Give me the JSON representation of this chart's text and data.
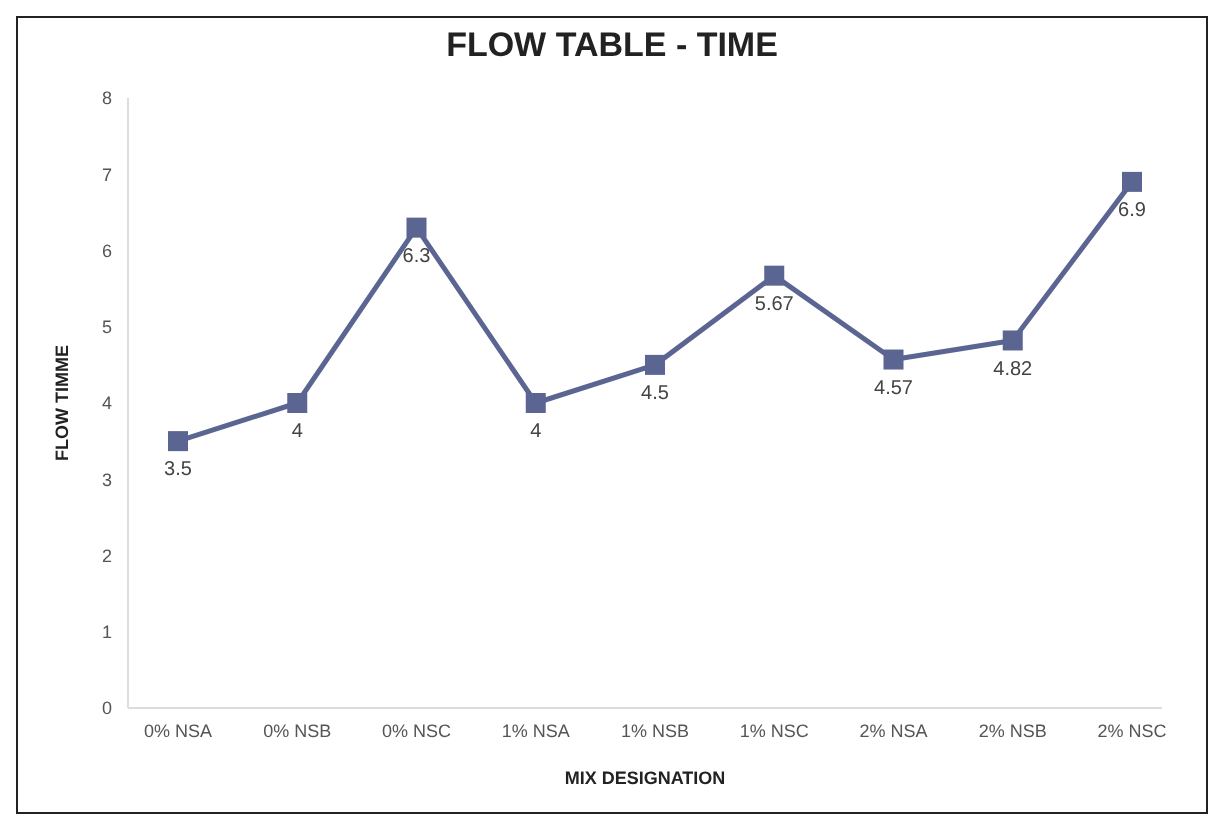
{
  "chart_data": {
    "type": "line",
    "title": "FLOW TABLE - TIME",
    "xlabel": "MIX DESIGNATION",
    "ylabel": "FLOW TIMME",
    "categories": [
      "0% NSA",
      "0% NSB",
      "0% NSC",
      "1% NSA",
      "1% NSB",
      "1% NSC",
      "2% NSA",
      "2% NSB",
      "2% NSC"
    ],
    "series": [
      {
        "color": "#5b6591",
        "values": [
          3.5,
          4,
          6.3,
          4,
          4.5,
          5.67,
          4.57,
          4.82,
          6.9
        ]
      }
    ],
    "ylim": [
      0,
      8
    ],
    "yticks": [
      0,
      1,
      2,
      3,
      4,
      5,
      6,
      7,
      8
    ],
    "grid": false,
    "legend": false,
    "marker": "square",
    "line_style": "solid",
    "data_labels": true
  }
}
